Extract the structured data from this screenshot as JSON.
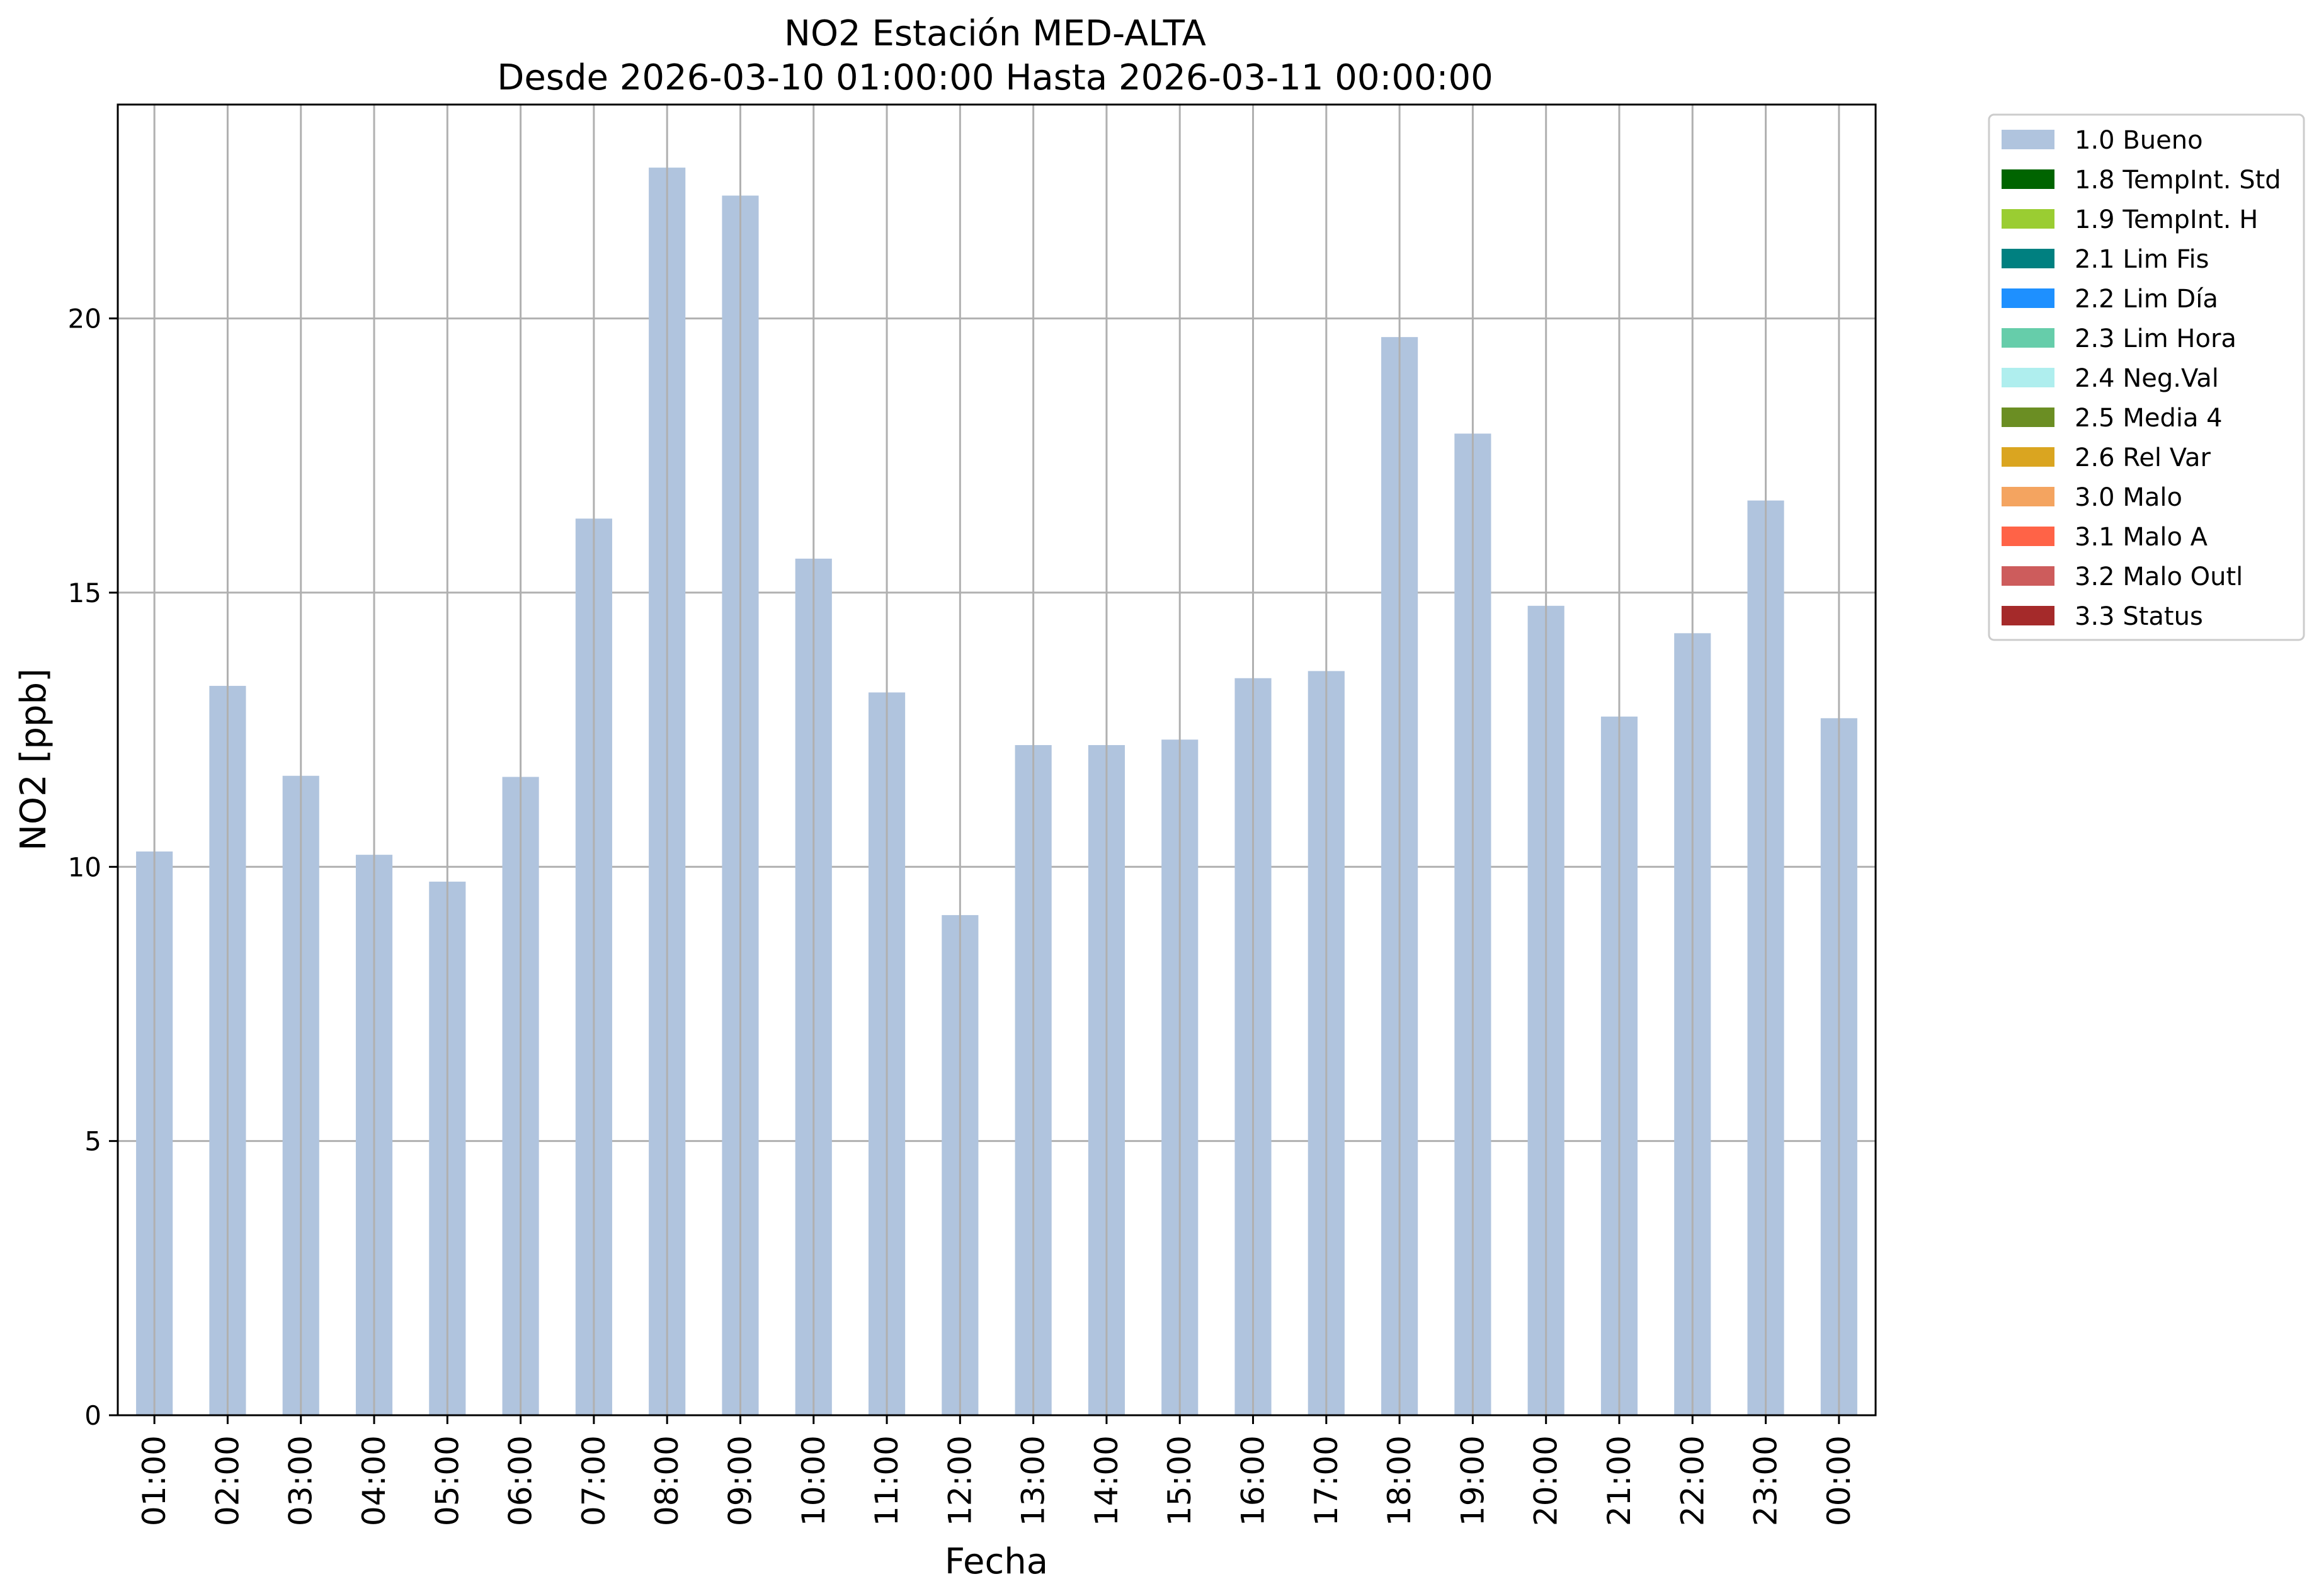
{
  "chart_data": {
    "type": "bar",
    "title": "NO2 Estación MED-ALTA",
    "subtitle": "Desde 2026-03-10 01:00:00 Hasta 2026-03-11 00:00:00",
    "xlabel": "Fecha",
    "ylabel": "NO2 [ppb]",
    "ylim": [
      0,
      23.9
    ],
    "yticks": [
      0,
      5,
      10,
      15,
      20
    ],
    "grid": true,
    "legend_position": "outside-top-right",
    "categories": [
      "01:00",
      "02:00",
      "03:00",
      "04:00",
      "05:00",
      "06:00",
      "07:00",
      "08:00",
      "09:00",
      "10:00",
      "11:00",
      "12:00",
      "13:00",
      "14:00",
      "15:00",
      "16:00",
      "17:00",
      "18:00",
      "19:00",
      "20:00",
      "21:00",
      "22:00",
      "23:00",
      "00:00"
    ],
    "series": [
      {
        "name": "1.0 Bueno",
        "color": "#b0c4de",
        "values": [
          10.28,
          13.3,
          11.66,
          10.22,
          9.73,
          11.64,
          16.35,
          22.75,
          22.24,
          15.62,
          13.18,
          9.12,
          12.22,
          12.22,
          12.32,
          13.44,
          13.57,
          19.66,
          17.9,
          14.76,
          12.74,
          14.26,
          16.68,
          12.71
        ]
      }
    ],
    "legend": [
      {
        "label": "1.0 Bueno",
        "color": "#b0c4de"
      },
      {
        "label": "1.8 TempInt. Std",
        "color": "#006400"
      },
      {
        "label": "1.9 TempInt. H",
        "color": "#9acd32"
      },
      {
        "label": "2.1 Lim Fis",
        "color": "#008080"
      },
      {
        "label": "2.2 Lim Día",
        "color": "#1e90ff"
      },
      {
        "label": "2.3 Lim Hora",
        "color": "#66cdaa"
      },
      {
        "label": "2.4 Neg.Val",
        "color": "#afeeee"
      },
      {
        "label": "2.5 Media 4",
        "color": "#6b8e23"
      },
      {
        "label": "2.6 Rel Var",
        "color": "#daa520"
      },
      {
        "label": "3.0 Malo",
        "color": "#f4a460"
      },
      {
        "label": "3.1 Malo A",
        "color": "#ff6347"
      },
      {
        "label": "3.2 Malo Outl",
        "color": "#cd5c5c"
      },
      {
        "label": "3.3 Status",
        "color": "#a52a2a"
      }
    ]
  }
}
